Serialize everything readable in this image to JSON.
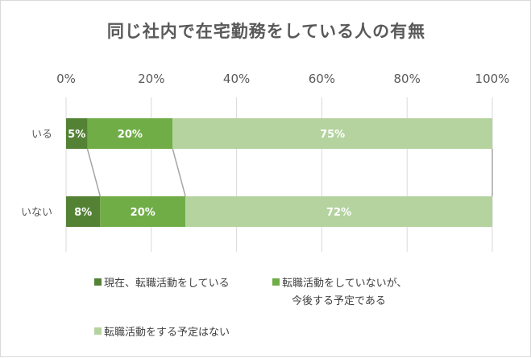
{
  "chart_data": {
    "type": "bar",
    "orientation": "horizontal",
    "stacked": "100%",
    "title": "同じ社内で在宅勤務をしている人の有無",
    "xlabel": "",
    "ylabel": "",
    "xlim": [
      0,
      100
    ],
    "x_ticks": [
      "0%",
      "20%",
      "40%",
      "60%",
      "80%",
      "100%"
    ],
    "categories": [
      "いる",
      "いない"
    ],
    "grid": true,
    "legend_position": "bottom",
    "series": [
      {
        "name": "現在、転職活動をしている",
        "legend_lines": [
          "現在、転職活動をしている"
        ],
        "color": "#548235",
        "values": [
          5,
          8
        ],
        "labels": [
          "5%",
          "8%"
        ]
      },
      {
        "name": "転職活動をしていないが、今後する予定である",
        "legend_lines": [
          "転職活動をしていないが、",
          "今後する予定である"
        ],
        "color": "#70ad47",
        "values": [
          20,
          20
        ],
        "labels": [
          "20%",
          "20%"
        ]
      },
      {
        "name": "転職活動をする予定はない",
        "legend_lines": [
          "転職活動をする予定はない"
        ],
        "color": "#b4d39f",
        "values": [
          75,
          72
        ],
        "labels": [
          "75%",
          "72%"
        ]
      }
    ]
  }
}
